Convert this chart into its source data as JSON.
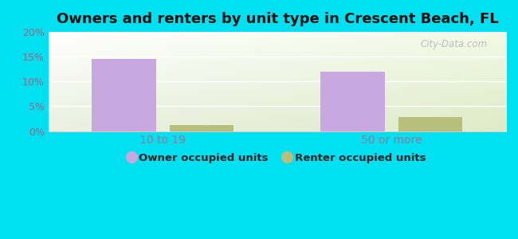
{
  "title": "Owners and renters by unit type in Crescent Beach, FL",
  "categories": [
    "10 to 19",
    "50 or more"
  ],
  "owner_values": [
    14.5,
    12.0
  ],
  "renter_values": [
    1.2,
    2.8
  ],
  "owner_color": "#c9a8e0",
  "renter_color": "#b8bf7a",
  "ylim": [
    0,
    20
  ],
  "yticks": [
    0,
    5,
    10,
    15,
    20
  ],
  "ytick_labels": [
    "0%",
    "5%",
    "10%",
    "15%",
    "20%"
  ],
  "bar_width": 0.28,
  "background_color_outer": "#00e0f0",
  "grid_color": "#ffffff",
  "title_fontsize": 13,
  "tick_label_color": "#996688",
  "xtick_label_color": "#997799",
  "legend_owner": "Owner occupied units",
  "legend_renter": "Renter occupied units",
  "watermark": "City-Data.com"
}
